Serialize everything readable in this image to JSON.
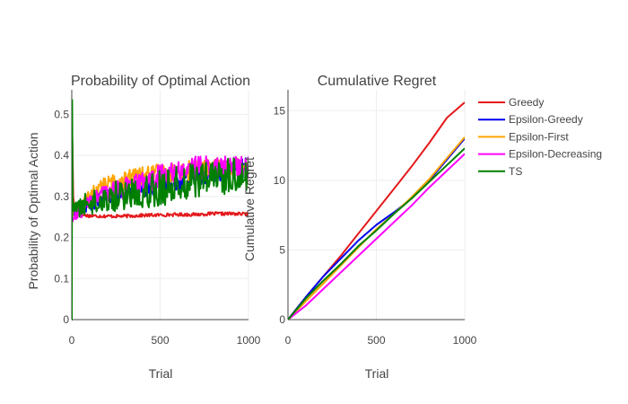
{
  "chart_data": [
    {
      "type": "line",
      "title": "Probability of Optimal Action",
      "xlabel": "Trial",
      "ylabel": "Probability of Optimal Action",
      "xlim": [
        0,
        1000
      ],
      "ylim": [
        0,
        0.56
      ],
      "xticks": [
        0,
        500,
        1000
      ],
      "xtick_labels": [
        "0",
        "500",
        "1000"
      ],
      "yticks": [
        0,
        0.1,
        0.2,
        0.3,
        0.4,
        0.5
      ],
      "ytick_labels": [
        "0",
        "0.1",
        "0.2",
        "0.3",
        "0.4",
        "0.5"
      ],
      "grid": true,
      "series": [
        {
          "name": "Greedy",
          "color": "#e41a1c",
          "x": [
            0,
            3,
            8,
            15,
            30,
            60,
            100,
            200,
            300,
            400,
            500,
            600,
            700,
            800,
            900,
            1000
          ],
          "y": [
            0.25,
            0.44,
            0.3,
            0.27,
            0.26,
            0.255,
            0.253,
            0.252,
            0.252,
            0.254,
            0.255,
            0.256,
            0.256,
            0.258,
            0.258,
            0.257
          ]
        },
        {
          "name": "Epsilon-Greedy",
          "color": "#0000ee",
          "x": [
            0,
            5,
            20,
            50,
            100,
            200,
            300,
            400,
            500,
            600,
            700,
            800,
            900,
            1000
          ],
          "y": [
            0.25,
            0.26,
            0.26,
            0.27,
            0.28,
            0.3,
            0.31,
            0.32,
            0.33,
            0.34,
            0.35,
            0.36,
            0.365,
            0.37
          ]
        },
        {
          "name": "Epsilon-First",
          "color": "#ffa500",
          "x": [
            0,
            5,
            20,
            50,
            100,
            150,
            200,
            300,
            400,
            500,
            600,
            700,
            800,
            900,
            1000
          ],
          "y": [
            0.25,
            0.26,
            0.27,
            0.28,
            0.3,
            0.32,
            0.33,
            0.34,
            0.35,
            0.355,
            0.36,
            0.365,
            0.37,
            0.37,
            0.37
          ]
        },
        {
          "name": "Epsilon-Decreasing",
          "color": "#ff00ff",
          "x": [
            0,
            5,
            20,
            50,
            100,
            200,
            300,
            400,
            500,
            600,
            700,
            800,
            900,
            1000
          ],
          "y": [
            0.25,
            0.24,
            0.25,
            0.26,
            0.29,
            0.31,
            0.32,
            0.33,
            0.35,
            0.36,
            0.37,
            0.37,
            0.37,
            0.37
          ]
        },
        {
          "name": "TS",
          "color": "#008000",
          "x": [
            0,
            2,
            5,
            10,
            20,
            50,
            100,
            200,
            300,
            400,
            500,
            600,
            700,
            800,
            900,
            1000
          ],
          "y": [
            0.0,
            0.535,
            0.3,
            0.27,
            0.27,
            0.275,
            0.285,
            0.295,
            0.305,
            0.315,
            0.32,
            0.33,
            0.34,
            0.345,
            0.35,
            0.355
          ]
        }
      ]
    },
    {
      "type": "line",
      "title": "Cumulative Regret",
      "xlabel": "Trial",
      "ylabel": "Cumulative Regret",
      "xlim": [
        0,
        1000
      ],
      "ylim": [
        0,
        16.5
      ],
      "xticks": [
        0,
        500,
        1000
      ],
      "xtick_labels": [
        "0",
        "500",
        "1000"
      ],
      "yticks": [
        0,
        5,
        10,
        15
      ],
      "ytick_labels": [
        "0",
        "5",
        "10",
        "15"
      ],
      "grid": true,
      "series": [
        {
          "name": "Greedy",
          "color": "#e41a1c",
          "x": [
            0,
            100,
            200,
            300,
            400,
            500,
            600,
            700,
            800,
            900,
            1000
          ],
          "y": [
            0.0,
            1.6,
            3.1,
            4.6,
            6.2,
            7.8,
            9.4,
            11.0,
            12.7,
            14.5,
            15.6
          ]
        },
        {
          "name": "Epsilon-Greedy",
          "color": "#0000ee",
          "x": [
            0,
            100,
            200,
            300,
            400,
            500,
            600,
            700,
            800,
            900,
            1000
          ],
          "y": [
            0.0,
            1.6,
            3.1,
            4.4,
            5.7,
            6.8,
            7.7,
            8.7,
            10.0,
            11.5,
            13.0
          ]
        },
        {
          "name": "Epsilon-First",
          "color": "#ffa500",
          "x": [
            0,
            100,
            200,
            300,
            400,
            500,
            600,
            700,
            800,
            900,
            1000
          ],
          "y": [
            0.0,
            1.3,
            2.6,
            3.9,
            5.2,
            6.5,
            7.6,
            8.8,
            10.1,
            11.6,
            13.1
          ]
        },
        {
          "name": "Epsilon-Decreasing",
          "color": "#ff00ff",
          "x": [
            0,
            100,
            200,
            300,
            400,
            500,
            600,
            700,
            800,
            900,
            1000
          ],
          "y": [
            0.0,
            1.0,
            2.2,
            3.4,
            4.6,
            5.8,
            7.0,
            8.2,
            9.5,
            10.7,
            11.9
          ]
        },
        {
          "name": "TS",
          "color": "#008000",
          "x": [
            0,
            100,
            200,
            300,
            400,
            500,
            600,
            700,
            800,
            900,
            1000
          ],
          "y": [
            0.0,
            1.5,
            2.8,
            4.0,
            5.3,
            6.4,
            7.6,
            8.7,
            9.9,
            11.1,
            12.3
          ]
        }
      ]
    }
  ],
  "legend": {
    "placement": "right",
    "items": [
      {
        "label": "Greedy",
        "color": "#e41a1c"
      },
      {
        "label": "Epsilon-Greedy",
        "color": "#0000ee"
      },
      {
        "label": "Epsilon-First",
        "color": "#ffa500"
      },
      {
        "label": "Epsilon-Decreasing",
        "color": "#ff00ff"
      },
      {
        "label": "TS",
        "color": "#008000"
      }
    ]
  }
}
